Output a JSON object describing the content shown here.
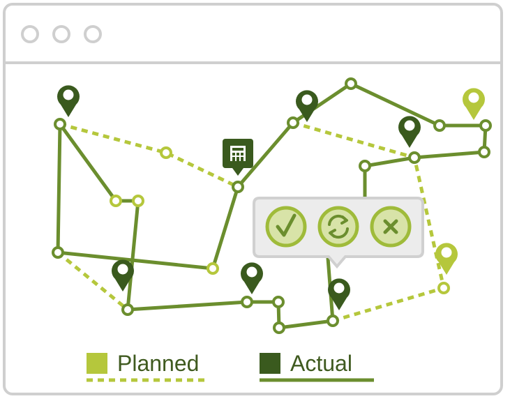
{
  "window": {
    "buttons": [
      "close",
      "minimize",
      "maximize"
    ]
  },
  "legend": {
    "planned_label": "Planned",
    "actual_label": "Actual"
  },
  "popup_actions": [
    {
      "name": "approve-button",
      "icon": "check-icon"
    },
    {
      "name": "refresh-button",
      "icon": "refresh-icon"
    },
    {
      "name": "cancel-button",
      "icon": "close-icon"
    }
  ],
  "colors": {
    "planned": "#b5c73c",
    "actual": "#6b8e2e",
    "dark_pin": "#3a5a1e",
    "light_pin": "#b5c73c",
    "popup_bg": "#ececec",
    "popup_border": "#d0d0d0",
    "button_fill": "#d8e3a8",
    "frame": "#cfcfcf"
  }
}
